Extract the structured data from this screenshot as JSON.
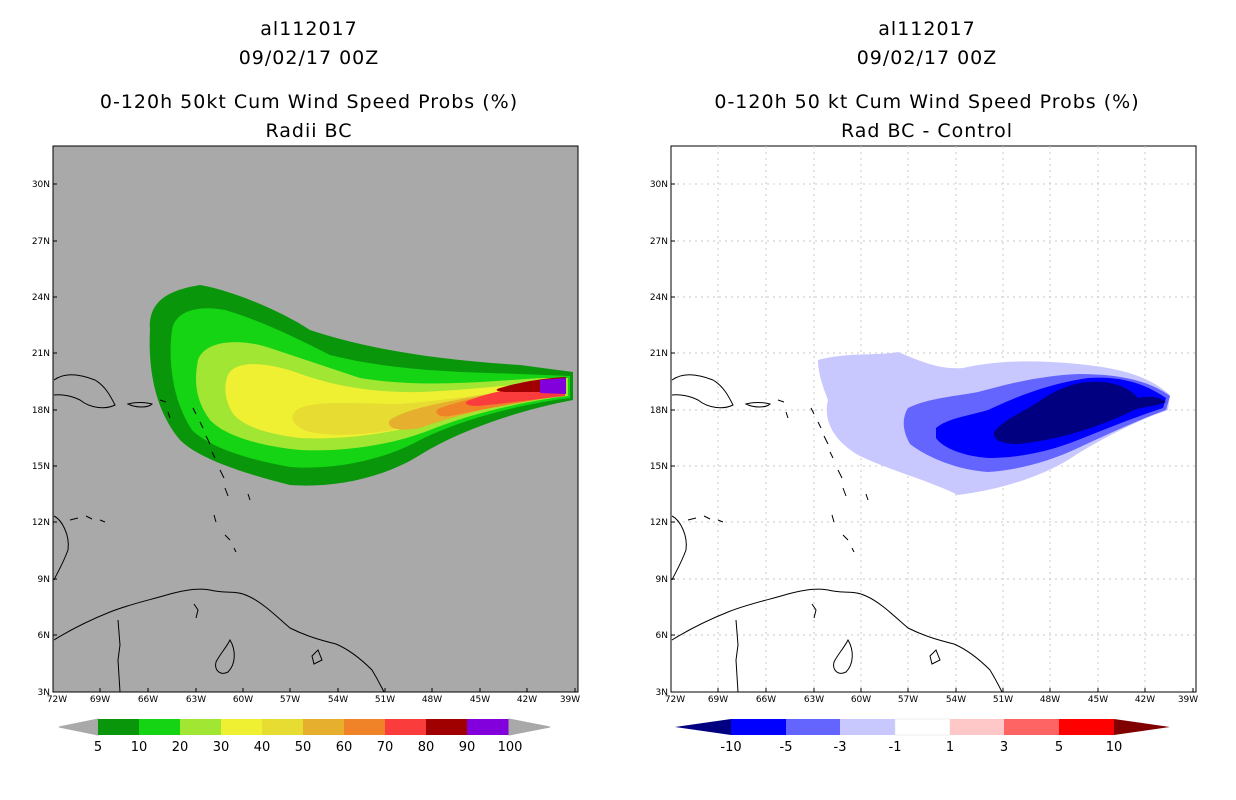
{
  "panels": [
    {
      "storm_id": "al112017",
      "date": "09/02/17 00Z",
      "title": "0-120h 50kt Cum Wind Speed Probs (%)",
      "subtitle": "Radii BC",
      "map_background": "#a9a9a9",
      "colorbar": {
        "left_arrow": "#a9a9a9",
        "right_arrow": "#a9a9a9",
        "colors": [
          "#0a960a",
          "#14d414",
          "#a0e632",
          "#f0f032",
          "#e6dc32",
          "#e6af2d",
          "#f08228",
          "#fa3c3c",
          "#a00000",
          "#8200dc"
        ],
        "labels": [
          "5",
          "10",
          "20",
          "30",
          "40",
          "50",
          "60",
          "70",
          "80",
          "90",
          "100"
        ]
      }
    },
    {
      "storm_id": "al112017",
      "date": "09/02/17 00Z",
      "title": "0-120h 50 kt Cum Wind Speed Probs (%)",
      "subtitle": "Rad BC - Control",
      "map_background": "#ffffff",
      "colorbar": {
        "left_arrow": "#000080",
        "right_arrow": "#800000",
        "colors": [
          "#0000ff",
          "#6464ff",
          "#c8c8ff",
          "#ffffff",
          "#ffc8c8",
          "#ff6464",
          "#ff0000"
        ],
        "labels": [
          "-10",
          "-5",
          "-3",
          "-1",
          "1",
          "3",
          "5",
          "10"
        ]
      }
    }
  ],
  "x_ticks": [
    "72W",
    "69W",
    "66W",
    "63W",
    "60W",
    "57W",
    "54W",
    "51W",
    "48W",
    "45W",
    "42W",
    "39W"
  ],
  "y_ticks": [
    "3N",
    "6N",
    "9N",
    "12N",
    "15N",
    "18N",
    "21N",
    "24N",
    "27N",
    "30N"
  ]
}
